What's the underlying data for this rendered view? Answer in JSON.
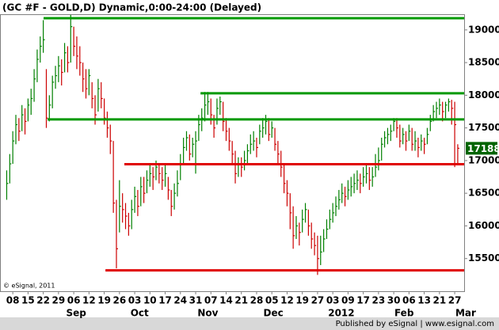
{
  "chart_data": {
    "type": "hlc",
    "title": "(GC #F - GOLD,D) Dynamic,0:00-24:00 (Delayed)",
    "copyright": "© eSignal, 2011",
    "footer": "Published by eSignal | www.esignal.com",
    "up_color": "#008000",
    "down_color": "#cc0000",
    "xlim": [
      0.8,
      153.1
    ],
    "ylim": [
      15000,
      19240
    ],
    "yticks": [
      15500,
      16000,
      16500,
      17000,
      17500,
      18000,
      18500,
      19000
    ],
    "xticks": [
      {
        "value": 5,
        "label": "08"
      },
      {
        "value": 10,
        "label": "15"
      },
      {
        "value": 15,
        "label": "22"
      },
      {
        "value": 20,
        "label": "29"
      },
      {
        "value": 25,
        "label": "06"
      },
      {
        "value": 30,
        "label": "12"
      },
      {
        "value": 35,
        "label": "19"
      },
      {
        "value": 40,
        "label": "26"
      },
      {
        "value": 45,
        "label": "03"
      },
      {
        "value": 50,
        "label": "10"
      },
      {
        "value": 55,
        "label": "17"
      },
      {
        "value": 60,
        "label": "24"
      },
      {
        "value": 65,
        "label": "31"
      },
      {
        "value": 70,
        "label": "07"
      },
      {
        "value": 75,
        "label": "14"
      },
      {
        "value": 80,
        "label": "21"
      },
      {
        "value": 85,
        "label": "28"
      },
      {
        "value": 90,
        "label": "05"
      },
      {
        "value": 95,
        "label": "12"
      },
      {
        "value": 100,
        "label": "19"
      },
      {
        "value": 105,
        "label": "27"
      },
      {
        "value": 110,
        "label": "03"
      },
      {
        "value": 115,
        "label": "09"
      },
      {
        "value": 120,
        "label": "17"
      },
      {
        "value": 125,
        "label": "23"
      },
      {
        "value": 130,
        "label": "30"
      },
      {
        "value": 135,
        "label": "06"
      },
      {
        "value": 140,
        "label": "13"
      },
      {
        "value": 145,
        "label": "21"
      },
      {
        "value": 150,
        "label": "27"
      }
    ],
    "month_labels": [
      {
        "value": 25.8,
        "label": "Sep"
      },
      {
        "value": 46.6,
        "label": "Oct"
      },
      {
        "value": 69,
        "label": "Nov"
      },
      {
        "value": 90.5,
        "label": "Dec"
      },
      {
        "value": 112.8,
        "label": "2012"
      },
      {
        "value": 133.4,
        "label": "Feb"
      },
      {
        "value": 153.6,
        "label": "Mar"
      }
    ],
    "lines": [
      {
        "value": 19180,
        "start": 15.1,
        "color": "#009900"
      },
      {
        "value": 18030,
        "start": 66.6,
        "color": "#009900"
      },
      {
        "value": 17630,
        "start": 16.4,
        "color": "#009900"
      },
      {
        "value": 16945,
        "start": 41.6,
        "color": "#e00000"
      },
      {
        "value": 15320,
        "start": 35.4,
        "color": "#e00000"
      }
    ],
    "x": [
      3,
      4,
      5,
      6,
      7,
      8,
      9,
      10,
      11,
      12,
      13,
      14,
      15,
      16,
      17,
      18,
      19,
      20,
      21,
      22,
      23,
      24,
      25,
      26,
      27,
      28,
      29,
      30,
      31,
      32,
      33,
      34,
      35,
      36,
      37,
      38,
      39,
      40,
      41,
      42,
      43,
      44,
      45,
      46,
      47,
      48,
      49,
      50,
      51,
      52,
      53,
      54,
      55,
      56,
      57,
      58,
      59,
      60,
      61,
      62,
      63,
      64,
      65,
      66,
      67,
      68,
      69,
      70,
      71,
      72,
      73,
      74,
      75,
      76,
      77,
      78,
      79,
      80,
      81,
      82,
      83,
      84,
      85,
      86,
      87,
      88,
      89,
      90,
      91,
      92,
      93,
      94,
      95,
      96,
      97,
      98,
      99,
      100,
      101,
      102,
      103,
      104,
      105,
      106,
      107,
      108,
      109,
      110,
      111,
      112,
      113,
      114,
      115,
      116,
      117,
      118,
      119,
      120,
      121,
      122,
      123,
      124,
      125,
      126,
      127,
      128,
      129,
      130,
      131,
      132,
      133,
      134,
      135,
      136,
      137,
      138,
      139,
      140,
      141,
      142,
      143,
      144,
      145,
      146,
      147,
      148,
      149,
      150,
      151
    ],
    "high": [
      16850,
      17100,
      17450,
      17700,
      17650,
      17850,
      17800,
      17950,
      18100,
      18400,
      18700,
      18900,
      19150,
      18400,
      18000,
      18300,
      18450,
      18600,
      18550,
      18800,
      18750,
      19230,
      19050,
      18900,
      18750,
      18500,
      18400,
      18400,
      18200,
      18000,
      18250,
      18200,
      17950,
      17750,
      17550,
      17300,
      16400,
      16700,
      16500,
      16350,
      16200,
      16400,
      16600,
      16550,
      16750,
      16750,
      16850,
      16950,
      16900,
      17000,
      16950,
      16900,
      16950,
      16750,
      16550,
      16650,
      16850,
      17100,
      17350,
      17450,
      17400,
      17350,
      17450,
      17700,
      17800,
      18050,
      18050,
      17950,
      17700,
      17950,
      17980,
      17900,
      17650,
      17500,
      17300,
      17150,
      17050,
      17050,
      17150,
      17250,
      17400,
      17450,
      17350,
      17550,
      17650,
      17700,
      17650,
      17600,
      17500,
      17300,
      17150,
      16950,
      16700,
      16500,
      16300,
      16150,
      16050,
      16250,
      16350,
      16250,
      16050,
      15900,
      15850,
      15850,
      15950,
      16100,
      16250,
      16350,
      16450,
      16550,
      16650,
      16600,
      16700,
      16750,
      16800,
      16850,
      16800,
      16900,
      16950,
      16900,
      16900,
      17100,
      17200,
      17350,
      17450,
      17500,
      17550,
      17650,
      17650,
      17550,
      17500,
      17450,
      17550,
      17500,
      17450,
      17350,
      17400,
      17350,
      17500,
      17700,
      17850,
      17900,
      17950,
      17900,
      17900,
      17950,
      17930,
      17900,
      17250
    ],
    "low": [
      16400,
      16650,
      16950,
      17250,
      17300,
      17450,
      17400,
      17600,
      17700,
      17900,
      18200,
      18500,
      18650,
      17500,
      17600,
      17800,
      18100,
      18200,
      18150,
      18350,
      18350,
      18500,
      18600,
      18400,
      18300,
      18050,
      17950,
      18000,
      17800,
      17550,
      17750,
      17800,
      17550,
      17350,
      17100,
      16200,
      15350,
      15900,
      16050,
      15950,
      15850,
      15950,
      16200,
      16150,
      16300,
      16350,
      16500,
      16600,
      16550,
      16700,
      16650,
      16550,
      16600,
      16400,
      16150,
      16250,
      16450,
      16700,
      16950,
      17150,
      17000,
      17050,
      16800,
      17300,
      17450,
      17600,
      17700,
      17550,
      17350,
      17550,
      17700,
      17450,
      17300,
      17150,
      16950,
      16650,
      16750,
      16750,
      16850,
      16950,
      17100,
      17150,
      17050,
      17250,
      17350,
      17400,
      17300,
      17350,
      17150,
      16950,
      16750,
      16500,
      16300,
      15950,
      15650,
      15800,
      15700,
      15900,
      16050,
      15850,
      15650,
      15550,
      15250,
      15400,
      15600,
      15800,
      15950,
      16050,
      16150,
      16250,
      16350,
      16300,
      16400,
      16450,
      16500,
      16550,
      16500,
      16600,
      16650,
      16550,
      16600,
      16750,
      16850,
      17000,
      17200,
      17250,
      17300,
      17450,
      17350,
      17200,
      17250,
      17150,
      17300,
      17150,
      17150,
      17050,
      17150,
      17100,
      17250,
      17450,
      17600,
      17650,
      17700,
      17600,
      17650,
      17750,
      17550,
      16900,
      16950
    ],
    "close": [
      16650,
      16950,
      17300,
      17550,
      17450,
      17700,
      17600,
      17850,
      17950,
      18250,
      18550,
      18750,
      18850,
      17650,
      17850,
      18200,
      18300,
      18450,
      18350,
      18650,
      18500,
      19050,
      18750,
      18600,
      18500,
      18250,
      18100,
      18300,
      17950,
      17700,
      18100,
      17950,
      17650,
      17500,
      17300,
      16350,
      15650,
      16300,
      16250,
      16150,
      16000,
      16250,
      16450,
      16300,
      16600,
      16500,
      16700,
      16800,
      16750,
      16900,
      16800,
      16700,
      16800,
      16550,
      16300,
      16500,
      16650,
      16950,
      17200,
      17350,
      17100,
      17250,
      17300,
      17550,
      17650,
      17850,
      17900,
      17700,
      17500,
      17800,
      17900,
      17600,
      17450,
      17300,
      17100,
      16800,
      16950,
      16900,
      17000,
      17150,
      17250,
      17300,
      17200,
      17450,
      17500,
      17600,
      17400,
      17500,
      17250,
      17100,
      16900,
      16650,
      16500,
      16200,
      15850,
      16000,
      15900,
      16100,
      16250,
      16000,
      15800,
      15700,
      15500,
      15600,
      15800,
      15950,
      16100,
      16200,
      16300,
      16400,
      16500,
      16450,
      16550,
      16600,
      16650,
      16700,
      16650,
      16750,
      16800,
      16700,
      16750,
      16900,
      17000,
      17250,
      17350,
      17400,
      17450,
      17600,
      17500,
      17300,
      17400,
      17300,
      17450,
      17250,
      17300,
      17200,
      17300,
      17250,
      17400,
      17600,
      17750,
      17800,
      17850,
      17750,
      17850,
      17900,
      17800,
      17550,
      17188
    ]
  }
}
